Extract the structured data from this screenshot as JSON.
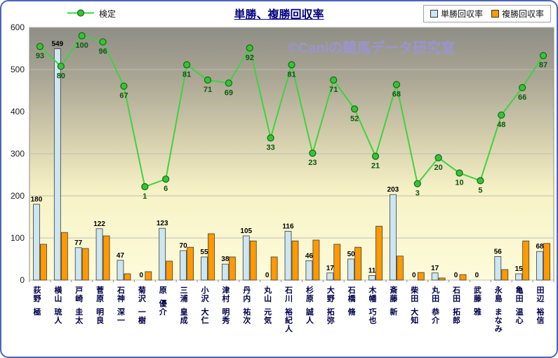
{
  "header": {
    "title": "単勝、複勝回収率",
    "watermark": "©Caniの競馬データ研究室"
  },
  "legend": {
    "line_label": "検定",
    "win_label": "単勝回収率",
    "place_label": "複勝回収率"
  },
  "colors": {
    "border": "#4a66b8",
    "title": "#000080",
    "win_bar": "#cce6f2",
    "place_bar": "#ff9900",
    "line": "#3fd23f",
    "line_marker": "#35c435",
    "line_marker_edge": "#166616",
    "watermark": "#9b94e0"
  },
  "chart_data": {
    "type": "bar",
    "title": "単勝、複勝回収率",
    "categories": [
      "荻野 極",
      "横山 琉人",
      "戸崎 圭太",
      "菅原 明良",
      "石神 深一",
      "菊沢 一樹",
      "原 優介",
      "三浦 皇成",
      "小沢 大仁",
      "津村 明秀",
      "丹内 祐次",
      "丸山 元気",
      "石川 裕紀人",
      "杉原 誠人",
      "大野 拓弥",
      "石橋 脩",
      "木幡 巧也",
      "斎藤 新",
      "柴田 大知",
      "丸田 恭介",
      "石田 拓郎",
      "武藤 雅",
      "永島 まなみ",
      "亀田 温心",
      "田辺 裕信"
    ],
    "series": [
      {
        "name": "単勝回収率",
        "type": "bar",
        "values": [
          180,
          549,
          77,
          122,
          47,
          0,
          123,
          70,
          55,
          38,
          105,
          0,
          116,
          46,
          17,
          50,
          11,
          203,
          0,
          17,
          0,
          0,
          56,
          15,
          68
        ]
      },
      {
        "name": "複勝回収率",
        "type": "bar",
        "values": [
          85,
          113,
          75,
          105,
          15,
          20,
          45,
          78,
          110,
          55,
          93,
          55,
          93,
          95,
          85,
          78,
          128,
          57,
          18,
          5,
          13,
          0,
          25,
          93,
          87
        ]
      },
      {
        "name": "検定",
        "type": "line",
        "values": [
          93,
          80,
          100,
          96,
          67,
          1,
          6,
          81,
          71,
          69,
          92,
          33,
          81,
          23,
          71,
          52,
          21,
          68,
          3,
          20,
          10,
          5,
          48,
          66,
          87
        ]
      }
    ],
    "xlabel": "",
    "ylabel": "",
    "ylim": [
      0,
      600
    ],
    "y_ticks": [
      0,
      100,
      200,
      300,
      400,
      500,
      600
    ],
    "grid": true,
    "legend_position": "top",
    "line_secondary_axis": {
      "base": 218,
      "scale": 3.62,
      "note": "検定 line is plotted on a hidden secondary axis; primary-axis-equivalent = base + scale * value"
    }
  }
}
